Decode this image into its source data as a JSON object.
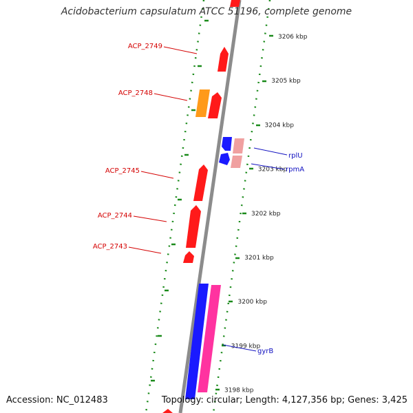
{
  "title": "Acidobacterium capsulatum ATCC 51196, complete genome",
  "footer": {
    "accession": "Accession: NC_012483",
    "summary": "Topology: circular; Length: 4,127,356 bp; Genes: 3,425"
  },
  "colors": {
    "backbone": "#8c8c8c",
    "tick": "#1a8a1a",
    "red_gene": "#ff1a1a",
    "orange_gene": "#ff9a1a",
    "blue_gene": "#1a1aff",
    "pink_gene": "#ff33a0",
    "salmon_gene": "#f0a0a0",
    "red_label": "#d40000",
    "blue_label": "#1010c0"
  },
  "scale": {
    "unit": "kbp",
    "ticks": [
      {
        "kbp": 3206,
        "label": "3206 kbp"
      },
      {
        "kbp": 3205,
        "label": "3205 kbp"
      },
      {
        "kbp": 3204,
        "label": "3204 kbp"
      },
      {
        "kbp": 3203,
        "label": "3203 kbp"
      },
      {
        "kbp": 3202,
        "label": "3202 kbp"
      },
      {
        "kbp": 3201,
        "label": "3201 kbp"
      },
      {
        "kbp": 3200,
        "label": "3200 kbp"
      },
      {
        "kbp": 3199,
        "label": "3199 kbp"
      },
      {
        "kbp": 3198,
        "label": "3198 kbp"
      }
    ]
  },
  "genes": [
    {
      "name": "ACP_2749",
      "label_side": "left",
      "color": "red_gene"
    },
    {
      "name": "ACP_2748",
      "label_side": "left",
      "color": "red_gene"
    },
    {
      "name": "ACP_2745",
      "label_side": "left",
      "color": "red_gene"
    },
    {
      "name": "ACP_2744",
      "label_side": "left",
      "color": "red_gene"
    },
    {
      "name": "ACP_2743",
      "label_side": "left",
      "color": "red_gene"
    },
    {
      "name": "rplU",
      "label_side": "right",
      "color": "blue_gene"
    },
    {
      "name": "rpmA",
      "label_side": "right",
      "color": "blue_gene"
    },
    {
      "name": "gyrB",
      "label_side": "right",
      "color": "blue_gene"
    }
  ]
}
